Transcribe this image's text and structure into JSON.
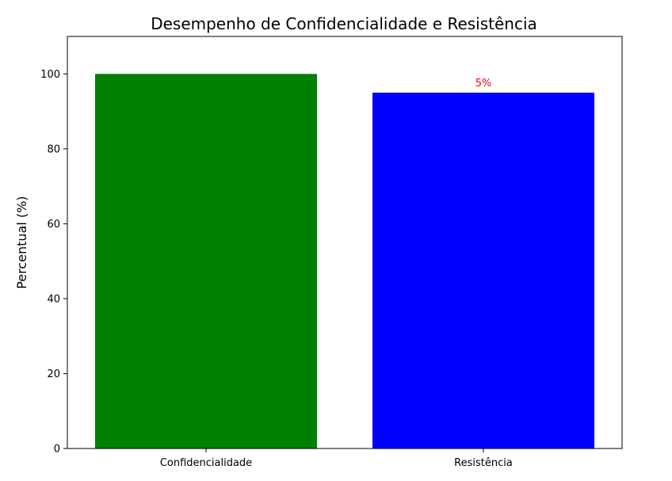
{
  "chart_data": {
    "type": "bar",
    "title": "Desempenho de Confidencialidade e Resistência",
    "xlabel": "",
    "ylabel": "Percentual (%)",
    "categories": [
      "Confidencialidade",
      "Resistência"
    ],
    "values": [
      100,
      95
    ],
    "colors": [
      "#008000",
      "#0000ff"
    ],
    "ylim": [
      0,
      110
    ],
    "yticks": [
      0,
      20,
      40,
      60,
      80,
      100
    ],
    "grid": false,
    "annotations": [
      {
        "category": "Resistência",
        "text": "5%",
        "color": "#ff0000"
      }
    ]
  }
}
